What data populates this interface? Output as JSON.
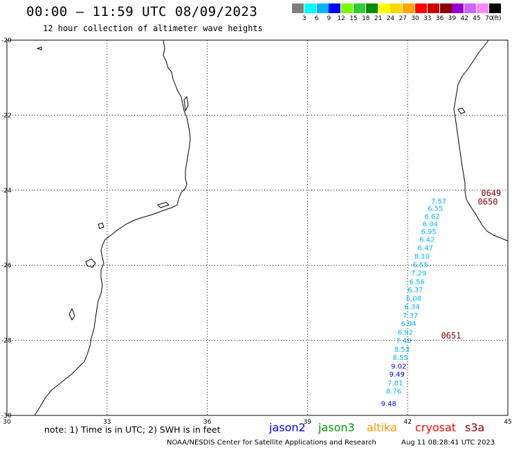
{
  "header": {
    "title": "00:00 – 11:59 UTC 08/09/2023",
    "subtitle": "12 hour collection of altimeter wave heights"
  },
  "colorbar": {
    "colors": [
      "#7f7f7f",
      "#00ffff",
      "#00b4ff",
      "#0000ff",
      "#7cfc00",
      "#32cd32",
      "#008b00",
      "#ffff00",
      "#ffd700",
      "#ffa500",
      "#ff0000",
      "#cd0000",
      "#8b0000",
      "#9400d3",
      "#cc66ff",
      "#ff88ff",
      "#000000"
    ],
    "labels": [
      "3",
      "6",
      "9",
      "12",
      "15",
      "18",
      "21",
      "24",
      "27",
      "30",
      "33",
      "36",
      "39",
      "42",
      "45",
      "70"
    ],
    "unit": "(ft)"
  },
  "map": {
    "lon_ticks": [
      "30",
      "33",
      "36",
      "39",
      "42",
      "45"
    ],
    "lat_ticks": [
      "-20",
      "-22",
      "-24",
      "-26",
      "-28",
      "-30"
    ],
    "lon_range": [
      30,
      45
    ],
    "lat_range": [
      -30,
      -20
    ],
    "grid": "dotted"
  },
  "swh_points": [
    {
      "text": "7.57",
      "color": "#00b4ff",
      "lon": 42.7,
      "lat": -24.35
    },
    {
      "text": "6.55",
      "color": "#00b4ff",
      "lon": 42.6,
      "lat": -24.55
    },
    {
      "text": "6.62",
      "color": "#00b4ff",
      "lon": 42.5,
      "lat": -24.76
    },
    {
      "text": "6.04",
      "color": "#00b4ff",
      "lon": 42.45,
      "lat": -24.96
    },
    {
      "text": "6.95",
      "color": "#00b4ff",
      "lon": 42.4,
      "lat": -25.17
    },
    {
      "text": "6.42",
      "color": "#00b4ff",
      "lon": 42.35,
      "lat": -25.38
    },
    {
      "text": "6.47",
      "color": "#00b4ff",
      "lon": 42.3,
      "lat": -25.6
    },
    {
      "text": "8.10",
      "color": "#00b4ff",
      "lon": 42.2,
      "lat": -25.82
    },
    {
      "text": "6.55",
      "color": "#00b4ff",
      "lon": 42.15,
      "lat": -26.05
    },
    {
      "text": "7.29",
      "color": "#00b4ff",
      "lon": 42.1,
      "lat": -26.27
    },
    {
      "text": "6.56",
      "color": "#00b4ff",
      "lon": 42.05,
      "lat": -26.5
    },
    {
      "text": "6.37",
      "color": "#00b4ff",
      "lon": 42.0,
      "lat": -26.72
    },
    {
      "text": "6.08",
      "color": "#00b4ff",
      "lon": 41.95,
      "lat": -26.95
    },
    {
      "text": "6.34",
      "color": "#00b4ff",
      "lon": 41.9,
      "lat": -27.17
    },
    {
      "text": "7.37",
      "color": "#00b4ff",
      "lon": 41.85,
      "lat": -27.4
    },
    {
      "text": "6.94",
      "color": "#00b4ff",
      "lon": 41.8,
      "lat": -27.62
    },
    {
      "text": "6.92",
      "color": "#00b4ff",
      "lon": 41.7,
      "lat": -27.85
    },
    {
      "text": "7.40",
      "color": "#00b4ff",
      "lon": 41.65,
      "lat": -28.07
    },
    {
      "text": "8.53",
      "color": "#00b4ff",
      "lon": 41.6,
      "lat": -28.3
    },
    {
      "text": "8.55",
      "color": "#00b4ff",
      "lon": 41.55,
      "lat": -28.52
    },
    {
      "text": "9.02",
      "color": "#0000ff",
      "lon": 41.5,
      "lat": -28.75
    },
    {
      "text": "9.49",
      "color": "#0000ff",
      "lon": 41.45,
      "lat": -28.97
    },
    {
      "text": "7.81",
      "color": "#00b4ff",
      "lon": 41.4,
      "lat": -29.2
    },
    {
      "text": "8.76",
      "color": "#00b4ff",
      "lon": 41.35,
      "lat": -29.42
    },
    {
      "text": "9.48",
      "color": "#0000ff",
      "lon": 41.2,
      "lat": -29.75
    }
  ],
  "pass_labels": [
    {
      "text": "0649",
      "color": "#8b0000",
      "lon": 44.2,
      "lat": -24.15
    },
    {
      "text": "0650",
      "color": "#8b0000",
      "lon": 44.1,
      "lat": -24.38
    },
    {
      "text": "0651",
      "color": "#8b0000",
      "lon": 43.0,
      "lat": -27.95
    }
  ],
  "footer": {
    "note": "note: 1) Time is in UTC; 2) SWH is in feet",
    "legend": [
      {
        "name": "jason2",
        "color": "#0000ff"
      },
      {
        "name": "jason3",
        "color": "#009900"
      },
      {
        "name": "altika",
        "color": "#ff9900"
      },
      {
        "name": "cryosat",
        "color": "#ff0000"
      },
      {
        "name": "s3a",
        "color": "#8b0000"
      }
    ],
    "credit": "NOAA/NESDIS Center for Satellite Applications and Research",
    "timestamp": "Aug 11 08:28:41 UTC 2023"
  }
}
